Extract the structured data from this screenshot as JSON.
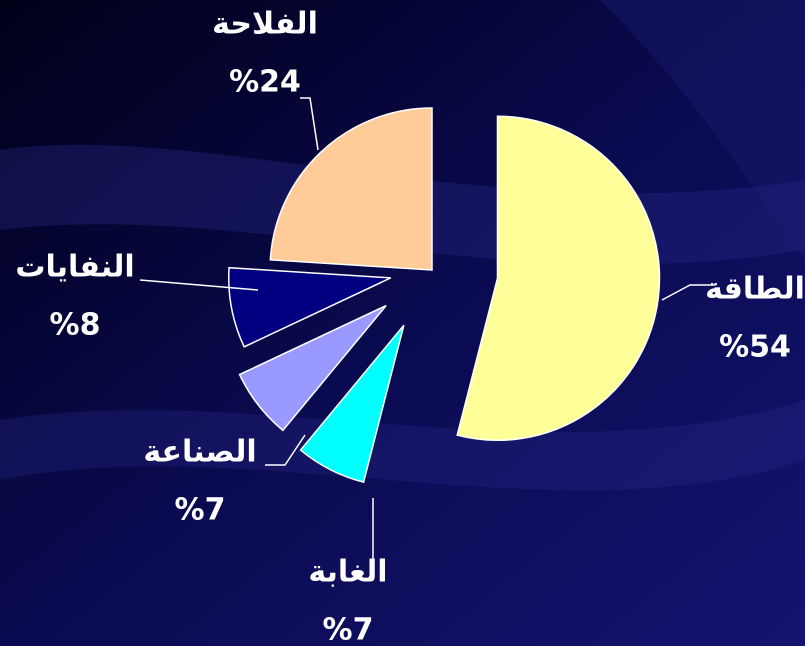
{
  "chart_data": {
    "type": "pie",
    "categories": [
      "الطاقة",
      "الغابة",
      "الصناعة",
      "النفايات",
      "الفلاحة"
    ],
    "values": [
      54,
      7,
      7,
      8,
      24
    ],
    "value_labels": [
      "%54",
      "%7",
      "%7",
      "%8",
      "%24"
    ],
    "colors": [
      "#ffff99",
      "#00ffff",
      "#9999ff",
      "#000080",
      "#ffcc99"
    ]
  }
}
